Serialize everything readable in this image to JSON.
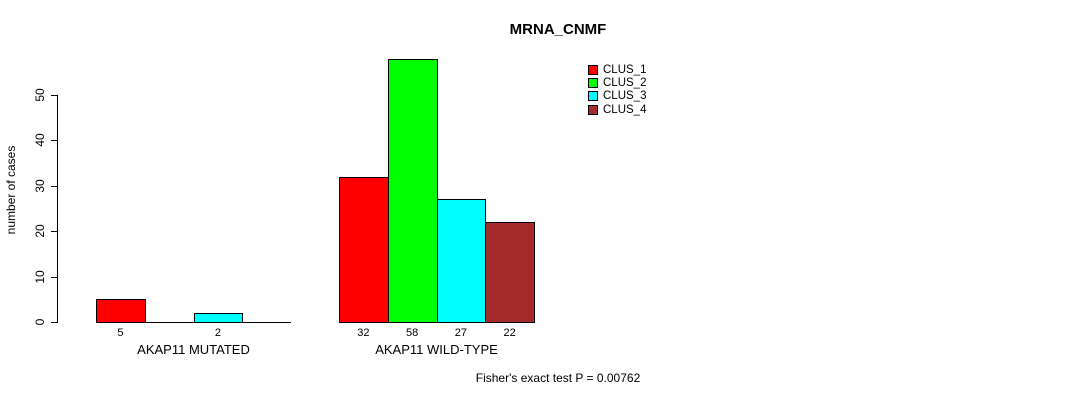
{
  "page": {
    "background": "#ffffff",
    "text_color": "#000000",
    "axis_color": "#000000"
  },
  "chart_data": {
    "type": "bar",
    "title": "MRNA_CNMF",
    "ylabel": "number of cases",
    "xlabel": "",
    "ylim": [
      0,
      58
    ],
    "yticks": [
      0,
      10,
      20,
      30,
      40,
      50
    ],
    "grid": false,
    "legend_position": "top-right-inside",
    "categories": [
      "AKAP11 MUTATED",
      "AKAP11 WILD-TYPE"
    ],
    "series": [
      {
        "name": "CLUS_1",
        "color": "#FF0000",
        "values": [
          5,
          32
        ]
      },
      {
        "name": "CLUS_2",
        "color": "#00FF00",
        "values": [
          0,
          58
        ]
      },
      {
        "name": "CLUS_3",
        "color": "#00FFFF",
        "values": [
          2,
          27
        ]
      },
      {
        "name": "CLUS_4",
        "color": "#A52A2A",
        "values": [
          0,
          22
        ]
      }
    ],
    "bar_value_labels": [
      [
        "5",
        "",
        "2",
        ""
      ],
      [
        "32",
        "58",
        "27",
        "22"
      ]
    ],
    "annotation": "Fisher's exact test P = 0.00762"
  }
}
